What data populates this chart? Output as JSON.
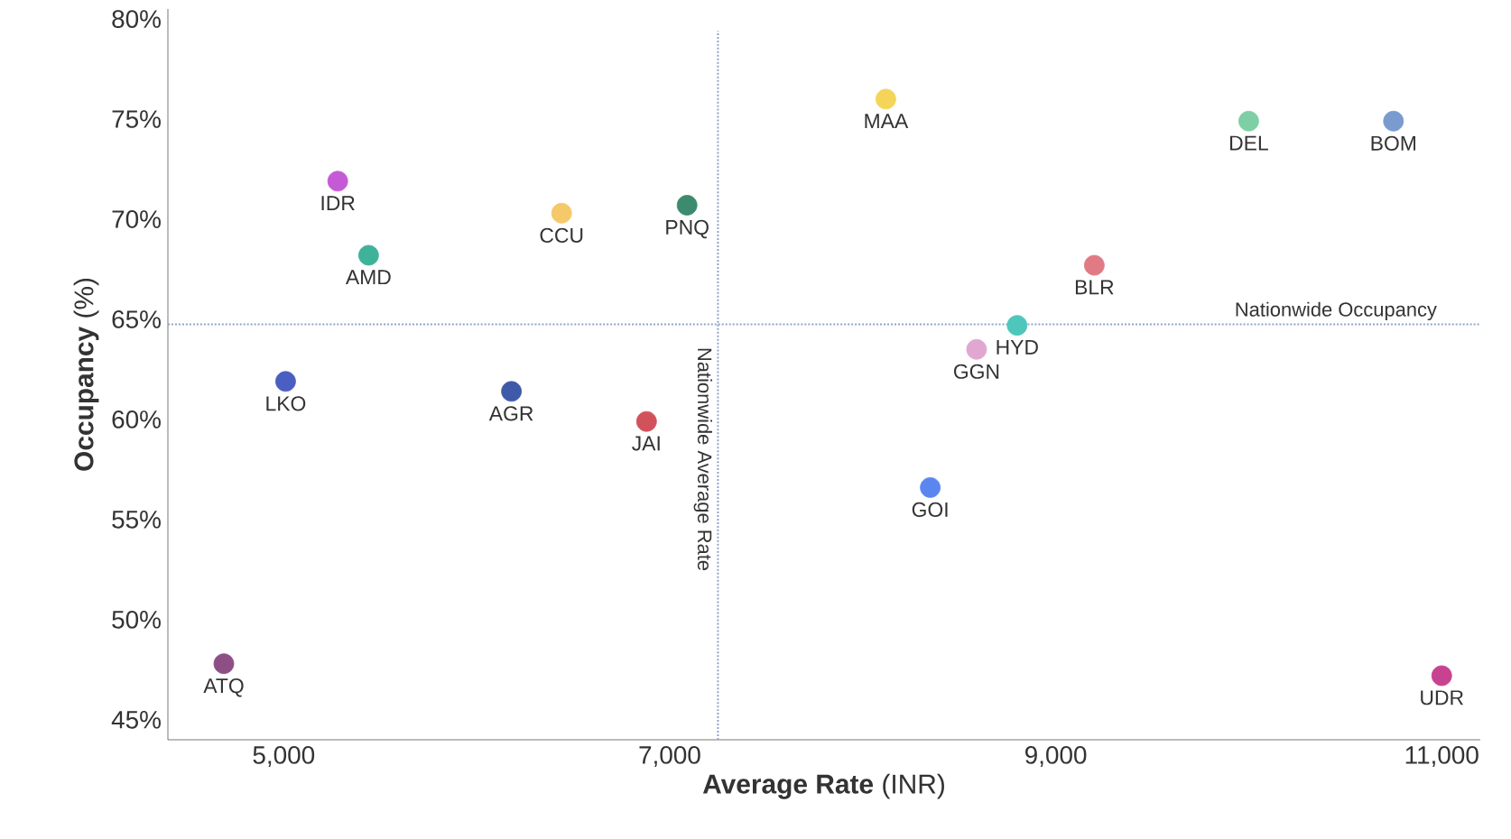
{
  "chart_data": {
    "type": "scatter",
    "xlabel": "**Average Rate** (INR)",
    "ylabel": "**Occupancy** (%)",
    "x": [
      8120,
      10000,
      10750,
      5280,
      6440,
      7090,
      5440,
      9200,
      8800,
      8590,
      5010,
      6180,
      6880,
      8350,
      4690,
      11000
    ],
    "values": [
      76.0,
      74.9,
      74.9,
      71.9,
      70.3,
      70.7,
      68.2,
      67.7,
      64.7,
      63.5,
      61.9,
      61.4,
      59.9,
      56.6,
      47.8,
      47.2
    ],
    "colors": [
      "#f5d45a",
      "#7fcfa6",
      "#7a9bd0",
      "#c55ad6",
      "#f5c86a",
      "#3d8b6e",
      "#3fb39a",
      "#e07a85",
      "#4fc6bc",
      "#e0a8d0",
      "#4a5fc1",
      "#3e5aa8",
      "#d2525c",
      "#5b86ef",
      "#8e4e86",
      "#c8438f"
    ],
    "annotations": [
      {
        "text": "MAA",
        "x": 8120,
        "y": 76.0
      },
      {
        "text": "DEL",
        "x": 10000,
        "y": 74.9
      },
      {
        "text": "BOM",
        "x": 10750,
        "y": 74.9
      },
      {
        "text": "IDR",
        "x": 5280,
        "y": 71.9
      },
      {
        "text": "CCU",
        "x": 6440,
        "y": 70.3
      },
      {
        "text": "PNQ",
        "x": 7090,
        "y": 70.7
      },
      {
        "text": "AMD",
        "x": 5440,
        "y": 68.2
      },
      {
        "text": "BLR",
        "x": 9200,
        "y": 67.7
      },
      {
        "text": "HYD",
        "x": 8800,
        "y": 64.7
      },
      {
        "text": "GGN",
        "x": 8590,
        "y": 63.5
      },
      {
        "text": "LKO",
        "x": 5010,
        "y": 61.9
      },
      {
        "text": "AGR",
        "x": 6180,
        "y": 61.4
      },
      {
        "text": "JAI",
        "x": 6880,
        "y": 59.9
      },
      {
        "text": "GOI",
        "x": 8350,
        "y": 56.6
      },
      {
        "text": "ATQ",
        "x": 4690,
        "y": 47.8
      },
      {
        "text": "UDR",
        "x": 11000,
        "y": 47.2
      }
    ],
    "ref_lines": [
      {
        "axis": "y",
        "value": 64.75,
        "label": "Nationwide Occupancy",
        "color": "#8fa3c8",
        "line_style": "dotted"
      },
      {
        "axis": "x",
        "value": 7250,
        "label": "Nationwide Average Rate",
        "color": "#8fa3c8",
        "line_style": "dotted"
      }
    ],
    "xlim": [
      4400,
      11200
    ],
    "ylim": [
      44,
      80.5
    ],
    "xticks": [
      {
        "value": 5000,
        "label": "5,000"
      },
      {
        "value": 7000,
        "label": "7,000"
      },
      {
        "value": 9000,
        "label": "9,000"
      },
      {
        "value": 11000,
        "label": "11,000"
      }
    ],
    "yticks": [
      {
        "value": 45,
        "label": "45%"
      },
      {
        "value": 50,
        "label": "50%"
      },
      {
        "value": 55,
        "label": "55%"
      },
      {
        "value": 60,
        "label": "60%"
      },
      {
        "value": 65,
        "label": "65%"
      },
      {
        "value": 70,
        "label": "70%"
      },
      {
        "value": 75,
        "label": "75%"
      },
      {
        "value": 80,
        "label": "80%"
      }
    ],
    "grid": false,
    "marker": "circle"
  }
}
